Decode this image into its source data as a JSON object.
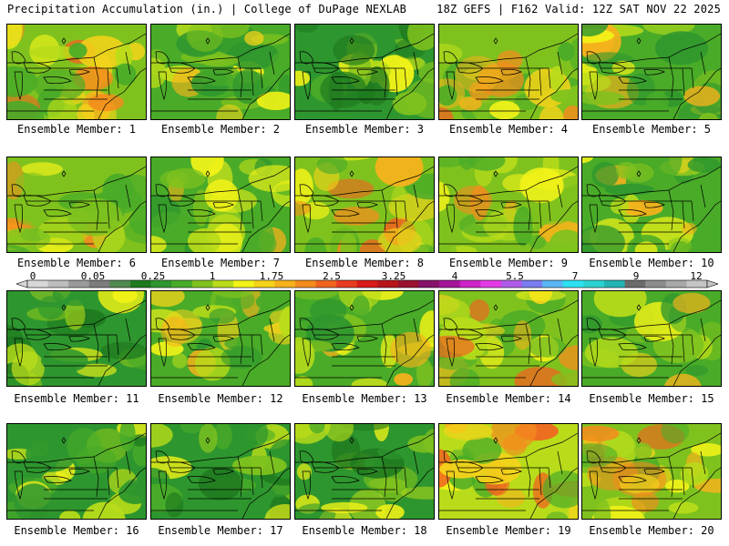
{
  "header": {
    "left": "Precipitation Accumulation (in.) | College of DuPage NEXLAB",
    "right": "18Z GEFS | F162 Valid: 12Z SAT NOV 22 2025"
  },
  "colorbar": {
    "labels": [
      "0",
      "0.05",
      "0.25",
      "1",
      "1.75",
      "2.5",
      "3.25",
      "4",
      "5.5",
      "7",
      "9",
      "12"
    ],
    "colors": [
      "#d8d8d8",
      "#bdbdbd",
      "#9a9a9a",
      "#7c7c7c",
      "#4f8a4f",
      "#1f7a1f",
      "#2e962e",
      "#49ab28",
      "#7fc21e",
      "#b8dc1a",
      "#f3f318",
      "#f4d31a",
      "#f6b21c",
      "#f48c1d",
      "#f0641f",
      "#e83c22",
      "#d81a1a",
      "#b8141a",
      "#9a1230",
      "#87106a",
      "#a6149a",
      "#cf22c8",
      "#e43be6",
      "#b05ae9",
      "#7a7cf1",
      "#58b6f4",
      "#2ce1f0",
      "#2ad3d2",
      "#25b4b4",
      "#6b6b6b",
      "#8d8d8d",
      "#a8a8a8",
      "#c4c4c4"
    ],
    "label_positions_note": "labels placed at color-stop boundaries"
  },
  "panels": [
    {
      "label": "Ensemble Member: 1",
      "mood": 1
    },
    {
      "label": "Ensemble Member: 2",
      "mood": 0
    },
    {
      "label": "Ensemble Member: 3",
      "mood": -1
    },
    {
      "label": "Ensemble Member: 4",
      "mood": 1
    },
    {
      "label": "Ensemble Member: 5",
      "mood": 0
    },
    {
      "label": "Ensemble Member: 6",
      "mood": 1
    },
    {
      "label": "Ensemble Member: 7",
      "mood": 0
    },
    {
      "label": "Ensemble Member: 8",
      "mood": 1
    },
    {
      "label": "Ensemble Member: 9",
      "mood": 1
    },
    {
      "label": "Ensemble Member: 10",
      "mood": 0
    },
    {
      "label": "Ensemble Member: 11",
      "mood": -1
    },
    {
      "label": "Ensemble Member: 12",
      "mood": 0
    },
    {
      "label": "Ensemble Member: 13",
      "mood": 0
    },
    {
      "label": "Ensemble Member: 14",
      "mood": 1
    },
    {
      "label": "Ensemble Member: 15",
      "mood": 0
    },
    {
      "label": "Ensemble Member: 16",
      "mood": -1
    },
    {
      "label": "Ensemble Member: 17",
      "mood": -1
    },
    {
      "label": "Ensemble Member: 18",
      "mood": -1
    },
    {
      "label": "Ensemble Member: 19",
      "mood": 2
    },
    {
      "label": "Ensemble Member: 20",
      "mood": 1
    }
  ]
}
